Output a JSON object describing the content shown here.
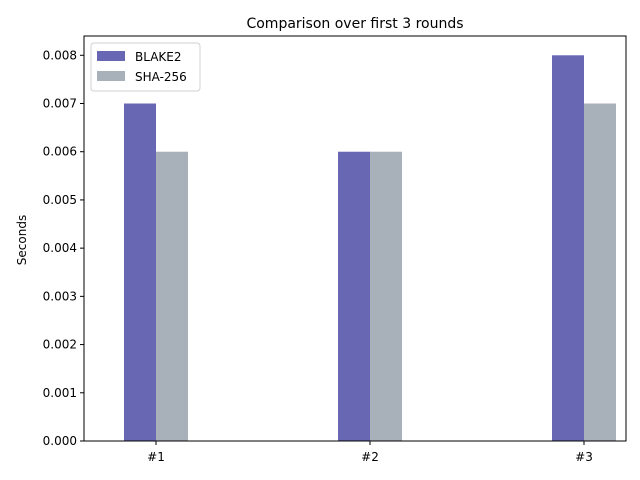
{
  "chart_data": {
    "type": "bar",
    "title": "Comparison over first 3 rounds",
    "xlabel": "",
    "ylabel": "Seconds",
    "categories": [
      "#1",
      "#2",
      "#3"
    ],
    "series": [
      {
        "name": "BLAKE2",
        "values": [
          0.007,
          0.006,
          0.008
        ],
        "color": "#6767b4"
      },
      {
        "name": "SHA-256",
        "values": [
          0.006,
          0.006,
          0.007
        ],
        "color": "#a8b0ba"
      }
    ],
    "ylim": [
      0,
      0.0084
    ],
    "yticks": [
      "0.000",
      "0.001",
      "0.002",
      "0.003",
      "0.004",
      "0.005",
      "0.006",
      "0.007",
      "0.008"
    ],
    "grid": false,
    "legend_position": "top-left"
  }
}
